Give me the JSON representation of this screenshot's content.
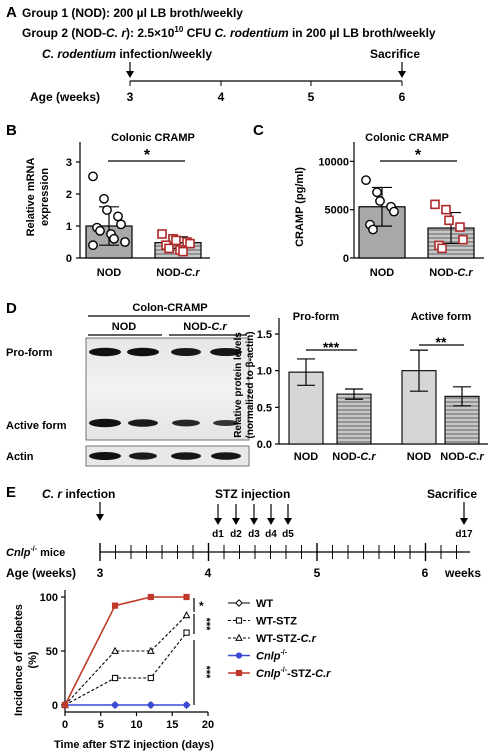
{
  "panel_a": {
    "letter": "A",
    "group1": "Group 1 (NOD): 200 µl LB broth/weekly",
    "group2_pre": "Group 2 (NOD-",
    "group2_cr": "C. r",
    "group2_mid": "): 2.5×10",
    "group2_exp": "10",
    "group2_cfu": " CFU ",
    "group2_cr2": "C. rodentium",
    "group2_post": " in 200 µl LB broth/weekly",
    "infection_italic": "C. rodentium",
    "infection_rest": " infection/weekly",
    "sacrifice": "Sacrifice",
    "age_label": "Age (weeks)",
    "ticks": [
      "3",
      "4",
      "5",
      "6"
    ]
  },
  "panel_b": {
    "letter": "B",
    "title": "Colonic CRAMP",
    "ylabel_line1": "Relative mRNA",
    "ylabel_line2": "expression",
    "sig": "*",
    "yticks": [
      "0",
      "1",
      "2",
      "3"
    ]
  },
  "panel_c": {
    "letter": "C",
    "title": "Colonic CRAMP",
    "ylabel": "CRAMP (pg/ml)",
    "sig": "*",
    "yticks": [
      "0",
      "5000",
      "10000"
    ]
  },
  "panel_d": {
    "letter": "D",
    "blot_title": "Colon-CRAMP",
    "lane_nod": "NOD",
    "lane_nodcr_pre": "NOD-",
    "lane_nodcr_it": "C.r",
    "pro_form": "Pro-form",
    "active_form": "Active form",
    "actin": "Actin",
    "chart_title_pro": "Pro-form",
    "chart_title_active": "Active form",
    "ylabel_line1": "Relative protein levels",
    "ylabel_line2": "(normalized to β-actin)",
    "yticks": [
      "0.0",
      "0.5",
      "1.0",
      "1.5"
    ],
    "sig_pro": "***",
    "sig_active": "**"
  },
  "panel_e": {
    "letter": "E",
    "infection_it": "C. r",
    "infection_rest": " infection",
    "stz_injection": "STZ injection",
    "days": [
      "d1",
      "d2",
      "d3",
      "d4",
      "d5"
    ],
    "sacrifice": "Sacrifice",
    "d17": "d17",
    "mice_it": "Cnlp",
    "mice_sup": "-/-",
    "mice_rest": " mice",
    "age_label": "Age (weeks)",
    "age_ticks": [
      "3",
      "4",
      "5",
      "6"
    ],
    "weeks": "weeks",
    "ylabel_line1": "Incidence of diabetes",
    "ylabel_line2": "(%)",
    "xlabel": "Time after STZ injection (days)",
    "yticks": [
      "0",
      "50",
      "100"
    ],
    "xticks": [
      "0",
      "5",
      "10",
      "15",
      "20"
    ],
    "legend": [
      {
        "name": "WT"
      },
      {
        "name": "WT-STZ"
      },
      {
        "name_pre": "WT-STZ-",
        "name_it": "C.r"
      },
      {
        "name_it": "Cnlp",
        "name_sup": "-/-"
      },
      {
        "name_it": "Cnlp",
        "name_sup": "-/-",
        "name_post": "-STZ-",
        "name_it2": "C.r"
      }
    ],
    "sig_marks": [
      "*",
      "***",
      "***"
    ]
  },
  "chart_data": [
    {
      "type": "bar",
      "panel": "B",
      "title": "Colonic CRAMP",
      "ylabel": "Relative mRNA expression",
      "categories": [
        "NOD",
        "NOD-C.r"
      ],
      "values": [
        1.0,
        0.48
      ],
      "errors": [
        0.6,
        0.18
      ],
      "ylim": [
        0,
        3
      ],
      "points": [
        [
          2.55,
          1.85,
          1.5,
          1.3,
          1.05,
          0.95,
          0.85,
          0.75,
          0.6,
          0.5,
          0.4
        ],
        [
          0.75,
          0.6,
          0.55,
          0.5,
          0.45,
          0.4,
          0.3,
          0.25,
          0.2
        ]
      ],
      "colors": [
        "#a9a9a9",
        "#c0c0c0"
      ]
    },
    {
      "type": "bar",
      "panel": "C",
      "title": "Colonic CRAMP",
      "ylabel": "CRAMP (pg/ml)",
      "categories": [
        "NOD",
        "NOD-C.r"
      ],
      "values": [
        5300,
        3100
      ],
      "errors": [
        2000,
        1600
      ],
      "ylim": [
        0,
        12000
      ],
      "points": [
        [
          8050,
          6800,
          5900,
          5300,
          4800,
          3450,
          2950
        ],
        [
          5550,
          5000,
          3900,
          3200,
          1900,
          1300,
          1000
        ]
      ],
      "colors": [
        "#a9a9a9",
        "#c0c0c0"
      ]
    },
    {
      "type": "bar",
      "panel": "D",
      "ylabel": "Relative protein levels (normalized to β-actin)",
      "groups": [
        "Pro-form",
        "Active form"
      ],
      "categories": [
        "NOD",
        "NOD-C.r"
      ],
      "series": [
        {
          "values": [
            0.98,
            0.68
          ],
          "errors": [
            0.18,
            0.07
          ]
        },
        {
          "values": [
            1.0,
            0.65
          ],
          "errors": [
            0.28,
            0.13
          ]
        }
      ],
      "ylim": [
        0,
        1.5
      ]
    },
    {
      "type": "line",
      "panel": "E",
      "ylabel": "Incidence of diabetes (%)",
      "xlabel": "Time after STZ injection (days)",
      "xlim": [
        0,
        20
      ],
      "ylim": [
        0,
        100
      ],
      "series": [
        {
          "name": "WT",
          "x": [
            0,
            7,
            12,
            17
          ],
          "y": [
            0,
            0,
            0,
            0
          ]
        },
        {
          "name": "WT-STZ",
          "x": [
            0,
            7,
            12,
            17
          ],
          "y": [
            0,
            25,
            25,
            67
          ]
        },
        {
          "name": "WT-STZ-C.r",
          "x": [
            0,
            7,
            12,
            17
          ],
          "y": [
            0,
            50,
            50,
            83
          ]
        },
        {
          "name": "Cnlp-/-",
          "x": [
            0,
            7,
            12,
            17
          ],
          "y": [
            0,
            0,
            0,
            0
          ],
          "color": "#3a4bd8"
        },
        {
          "name": "Cnlp-/--STZ-C.r",
          "x": [
            0,
            7,
            12,
            17
          ],
          "y": [
            0,
            92,
            100,
            100
          ],
          "color": "#c0392b"
        }
      ]
    }
  ]
}
